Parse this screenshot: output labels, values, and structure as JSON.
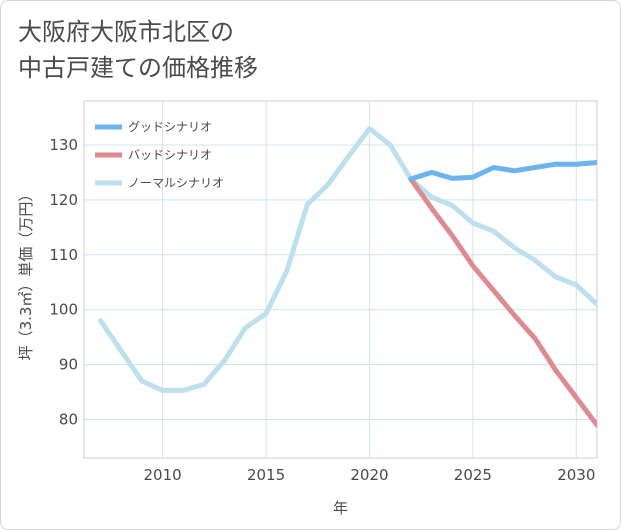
{
  "title_lines": [
    "大阪府大阪市北区の",
    "中古戸建ての価格推移"
  ],
  "chart_data": {
    "type": "line",
    "xlabel": "年",
    "ylabel": "坪（3.3㎡）単価（万円）",
    "xlim": [
      2006.2,
      2031
    ],
    "ylim": [
      73,
      138
    ],
    "x_ticks": [
      2010,
      2015,
      2020,
      2025,
      2030
    ],
    "y_ticks": [
      80,
      90,
      100,
      110,
      120,
      130
    ],
    "grid": true,
    "legend_position": "top-left",
    "series": [
      {
        "name": "グッドシナリオ",
        "color": "#6cb4ee",
        "x": [
          2022,
          2023,
          2024,
          2025,
          2026,
          2027,
          2028,
          2029,
          2030,
          2031
        ],
        "y": [
          123.8,
          125.0,
          123.9,
          124.1,
          125.9,
          125.3,
          125.9,
          126.5,
          126.5,
          126.8
        ]
      },
      {
        "name": "バッドシナリオ",
        "color": "#dd8a93",
        "x": [
          2022,
          2023,
          2024,
          2025,
          2026,
          2027,
          2028,
          2029,
          2030,
          2031
        ],
        "y": [
          123.8,
          118.5,
          113.5,
          108.0,
          103.5,
          99.0,
          94.8,
          89.0,
          84.0,
          79.0
        ]
      },
      {
        "name": "ノーマルシナリオ",
        "color": "#bde0ef",
        "x": [
          2007,
          2008,
          2009,
          2010,
          2011,
          2012,
          2013,
          2014,
          2015,
          2016,
          2017,
          2018,
          2019,
          2020,
          2021,
          2022,
          2023,
          2024,
          2025,
          2026,
          2027,
          2028,
          2029,
          2030,
          2031
        ],
        "y": [
          98.0,
          92.5,
          87.0,
          85.3,
          85.3,
          86.4,
          90.8,
          96.7,
          99.3,
          107.0,
          119.2,
          122.8,
          128.0,
          133.0,
          130.0,
          123.8,
          120.5,
          119.0,
          115.8,
          114.3,
          111.3,
          109.0,
          106.0,
          104.5,
          101.0
        ]
      }
    ]
  }
}
